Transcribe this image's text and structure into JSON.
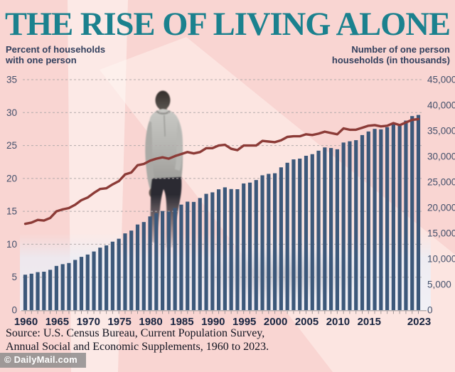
{
  "title": "THE RISE OF LIVING ALONE",
  "labels": {
    "left_axis_header": "Percent of households\nwith one person",
    "right_axis_header": "Number of one person\nhouseholds (in thousands)"
  },
  "source": {
    "line1": "Source: U.S. Census Bureau, Current Population Survey,",
    "line2": "Annual Social and Economic Supplements, 1960 to 2023."
  },
  "watermark": "© DailyMail.com",
  "colors": {
    "background": "#f9d5d2",
    "title": "#1b818e",
    "bar": "#3c587a",
    "line": "#8c3b37",
    "grid": "#b3abab",
    "axis": "#a09898",
    "tick_text": "#44506b",
    "year_text": "#17233f"
  },
  "chart_data": {
    "type": "bar+line",
    "title": "The Rise of Living Alone",
    "x": [
      1960,
      1961,
      1962,
      1963,
      1964,
      1965,
      1966,
      1967,
      1968,
      1969,
      1970,
      1971,
      1972,
      1973,
      1974,
      1975,
      1976,
      1977,
      1978,
      1979,
      1980,
      1981,
      1982,
      1983,
      1984,
      1985,
      1986,
      1987,
      1988,
      1989,
      1990,
      1991,
      1992,
      1993,
      1994,
      1995,
      1996,
      1997,
      1998,
      1999,
      2000,
      2001,
      2002,
      2003,
      2004,
      2005,
      2006,
      2007,
      2008,
      2009,
      2010,
      2011,
      2012,
      2013,
      2014,
      2015,
      2016,
      2017,
      2018,
      2019,
      2020,
      2021,
      2022,
      2023
    ],
    "series": [
      {
        "name": "Number of one person households (in thousands)",
        "type": "bar",
        "axis": "right",
        "values": [
          6917,
          7112,
          7418,
          7501,
          7868,
          8631,
          8971,
          9200,
          9803,
          10401,
          10851,
          11446,
          12199,
          12635,
          13368,
          13939,
          14983,
          15532,
          16715,
          17201,
          18296,
          18936,
          19354,
          19250,
          19954,
          20602,
          21178,
          21128,
          21889,
          22708,
          22999,
          23590,
          23974,
          23642,
          23611,
          24732,
          24900,
          25402,
          26327,
          26606,
          26724,
          27879,
          28775,
          29431,
          29586,
          30141,
          30453,
          31132,
          31767,
          31656,
          31407,
          32723,
          32967,
          33187,
          34183,
          34881,
          35388,
          35294,
          35716,
          36478,
          36091,
          37002,
          37892,
          38111
        ]
      },
      {
        "name": "Percent of households with one person",
        "type": "line",
        "axis": "left",
        "values": [
          13.1,
          13.3,
          13.7,
          13.6,
          14.0,
          15.0,
          15.3,
          15.5,
          16.0,
          16.7,
          17.1,
          17.8,
          18.4,
          18.5,
          19.1,
          19.6,
          20.6,
          20.9,
          22.0,
          22.2,
          22.7,
          23.0,
          23.2,
          23.0,
          23.4,
          23.7,
          24.0,
          23.8,
          24.0,
          24.6,
          24.6,
          25.0,
          25.1,
          24.5,
          24.3,
          25.0,
          25.0,
          25.0,
          25.7,
          25.6,
          25.5,
          25.8,
          26.3,
          26.4,
          26.4,
          26.7,
          26.6,
          26.8,
          27.1,
          26.9,
          26.7,
          27.6,
          27.4,
          27.4,
          27.7,
          28.0,
          28.1,
          27.9,
          28.0,
          28.4,
          28.1,
          28.5,
          28.9,
          29.0
        ]
      }
    ],
    "left_axis": {
      "range": [
        0,
        35
      ],
      "ticks": [
        0,
        5,
        10,
        15,
        20,
        25,
        30,
        35
      ]
    },
    "right_axis": {
      "range": [
        0,
        45000
      ],
      "tick_labels": [
        "0",
        "5,000",
        "10,000",
        "15,000",
        "20,000",
        "25,000",
        "30,000",
        "35,000",
        "40,000",
        "45,000"
      ]
    },
    "x_tick_labels": [
      "1960",
      "1965",
      "1970",
      "1975",
      "1980",
      "1985",
      "1990",
      "1995",
      "2000",
      "2005",
      "2010",
      "2015",
      "2023"
    ],
    "grid": "dashed-horizontal",
    "legend_position": "none"
  }
}
